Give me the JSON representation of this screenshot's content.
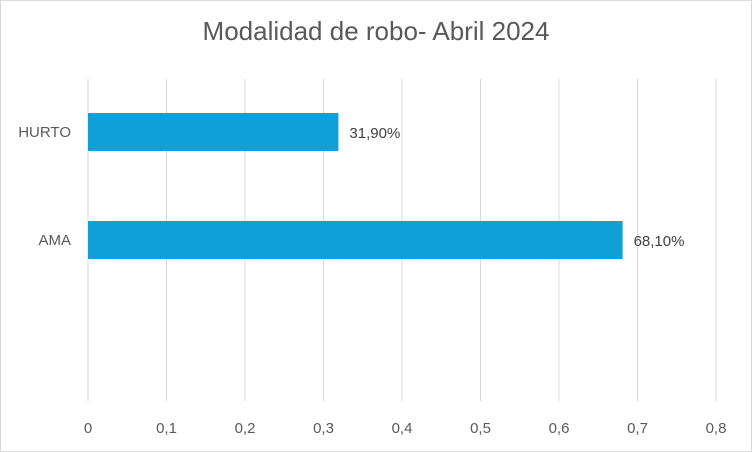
{
  "chart_data": {
    "type": "bar",
    "orientation": "horizontal",
    "title": "Modalidad de robo- Abril 2024",
    "categories": [
      "HURTO",
      "AMA"
    ],
    "values": [
      0.319,
      0.681
    ],
    "data_labels": [
      "31,90%",
      "68,10%"
    ],
    "xlim": [
      0,
      0.8
    ],
    "x_ticks": [
      "0",
      "0,1",
      "0,2",
      "0,3",
      "0,4",
      "0,5",
      "0,6",
      "0,7",
      "0,8"
    ],
    "grid": "vertical",
    "bar_color": "#109FD6",
    "legend": "none"
  }
}
